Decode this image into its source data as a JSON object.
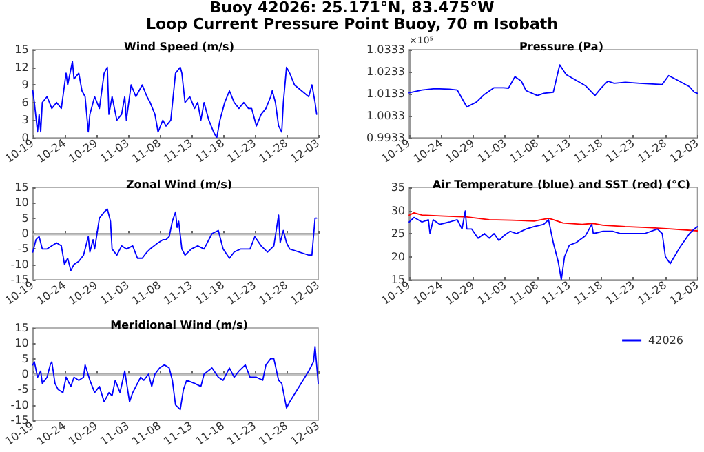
{
  "chart_data": [
    {
      "type": "other",
      "title": "Buoy 42026: 25.171°N, 83.475°W",
      "subtitle": "Loop Current Pressure Point Buoy, 70 m Isobath"
    },
    {
      "type": "line",
      "title": "Wind Speed (m/s)",
      "xlim": [
        "--10-19",
        "--12-03"
      ],
      "xticks": [
        {
          "value": "--10-19",
          "label": "10-19"
        },
        {
          "value": "--10-24",
          "label": "10-24"
        },
        {
          "value": "--10-29",
          "label": "10-29"
        },
        {
          "value": "--11-03",
          "label": "11-03"
        },
        {
          "value": "--11-08",
          "label": "11-08"
        },
        {
          "value": "--11-13",
          "label": "11-13"
        },
        {
          "value": "--11-18",
          "label": "11-18"
        },
        {
          "value": "--11-23",
          "label": "11-23"
        },
        {
          "value": "--11-28",
          "label": "11-28"
        },
        {
          "value": "--12-03",
          "label": "12-03"
        }
      ],
      "ylim": [
        0,
        15
      ],
      "yticks": [
        0,
        3,
        6,
        9,
        12,
        15
      ],
      "grid": false,
      "marker": "none",
      "line_style": "solid",
      "x": [
        "--10-19T00:00",
        "--10-19T06:00",
        "--10-19T18:00",
        "--10-20T00:00",
        "--10-20T06:00",
        "--10-20T12:00",
        "--10-21T06:00",
        "--10-22T00:00",
        "--10-22T18:00",
        "--10-23T12:00",
        "--10-24T06:00",
        "--10-24T12:00",
        "--10-25T06:00",
        "--10-25T12:00",
        "--10-26T06:00",
        "--10-26T18:00",
        "--10-27T06:00",
        "--10-27T18:00",
        "--10-28T00:00",
        "--10-28T18:00",
        "--10-29T12:00",
        "--10-30T06:00",
        "--10-30T18:00",
        "--10-31T00:00",
        "--10-31T12:00",
        "--11-01T06:00",
        "--11-02T00:00",
        "--11-02T12:00",
        "--11-02T18:00",
        "--11-03T12:00",
        "--11-04T06:00",
        "--11-05T06:00",
        "--11-06T00:00",
        "--11-06T12:00",
        "--11-07T06:00",
        "--11-07T18:00",
        "--11-08T12:00",
        "--11-09T00:00",
        "--11-09T18:00",
        "--11-10T12:00",
        "--11-11T06:00",
        "--11-11T12:00",
        "--11-12T00:00",
        "--11-12T18:00",
        "--11-13T12:00",
        "--11-14T00:00",
        "--11-14T12:00",
        "--11-15T00:00",
        "--11-15T18:00",
        "--11-16T12:00",
        "--11-17T00:00",
        "--11-17T12:00",
        "--11-18T06:00",
        "--11-19T00:00",
        "--11-19T18:00",
        "--11-20T12:00",
        "--11-21T06:00",
        "--11-22T00:00",
        "--11-22T12:00",
        "--11-23T06:00",
        "--11-24T00:00",
        "--11-24T18:00",
        "--11-25T12:00",
        "--11-25T18:00",
        "--11-26T06:00",
        "--11-26T18:00",
        "--11-27T06:00",
        "--11-27T12:00",
        "--11-28T00:00",
        "--11-28T12:00",
        "--11-29T06:00",
        "--12-01T12:00",
        "--12-02T00:00",
        "--12-02T12:00",
        "--12-02T18:00"
      ],
      "series": [
        {
          "color": "#0000ff",
          "values": [
            8,
            6,
            1,
            4,
            1,
            6,
            7,
            5,
            6,
            5,
            11,
            9,
            13,
            10,
            11,
            8,
            7,
            1,
            4,
            7,
            5,
            11,
            12,
            4,
            7,
            3,
            4,
            7,
            3,
            9,
            7,
            9,
            7,
            6,
            4,
            1,
            3,
            2,
            3,
            11,
            12,
            11,
            6,
            7,
            5,
            6,
            3,
            6,
            3,
            1,
            0,
            3,
            6,
            8,
            6,
            5,
            6,
            5,
            5,
            2,
            4,
            5,
            7,
            8,
            6,
            2,
            1,
            6,
            12,
            11,
            9,
            7,
            9,
            6,
            4
          ]
        }
      ]
    },
    {
      "type": "line",
      "title": "Pressure (Pa)",
      "annotations": [
        "×10⁵"
      ],
      "xlim": [
        "--10-19",
        "--12-03"
      ],
      "xticks": [
        {
          "value": "--10-19",
          "label": "10-19"
        },
        {
          "value": "--10-24",
          "label": "10-24"
        },
        {
          "value": "--10-29",
          "label": "10-29"
        },
        {
          "value": "--11-03",
          "label": "11-03"
        },
        {
          "value": "--11-08",
          "label": "11-08"
        },
        {
          "value": "--11-13",
          "label": "11-13"
        },
        {
          "value": "--11-18",
          "label": "11-18"
        },
        {
          "value": "--11-23",
          "label": "11-23"
        },
        {
          "value": "--11-28",
          "label": "11-28"
        },
        {
          "value": "--12-03",
          "label": "12-03"
        }
      ],
      "ylim": [
        0.9933,
        1.0333
      ],
      "yticks": [
        0.9933,
        1.0033,
        1.0133,
        1.0233,
        1.0333
      ],
      "grid": false,
      "marker": "none",
      "line_style": "solid",
      "x": [
        "--10-19T00:00",
        "--10-21T00:00",
        "--10-23T00:00",
        "--10-25T06:00",
        "--10-26T12:00",
        "--10-28T00:00",
        "--10-29T12:00",
        "--10-30T18:00",
        "--11-01T06:00",
        "--11-02T18:00",
        "--11-03T12:00",
        "--11-04T12:00",
        "--11-05T12:00",
        "--11-06T06:00",
        "--11-08T00:00",
        "--11-09T00:00",
        "--11-10T12:00",
        "--11-11T12:00",
        "--11-12T12:00",
        "--11-14T00:00",
        "--11-15T12:00",
        "--11-17T00:00",
        "--11-18T00:00",
        "--11-19T00:00",
        "--11-20T00:00",
        "--11-21T18:00",
        "--11-24T00:00",
        "--11-27T12:00",
        "--11-28T12:00",
        "--11-29T12:00",
        "--12-01T18:00",
        "--12-02T12:00",
        "--12-03T00:00"
      ],
      "series": [
        {
          "color": "#0000ff",
          "values": [
            1.0137,
            1.015,
            1.0156,
            1.0154,
            1.015,
            1.0073,
            1.0095,
            1.013,
            1.016,
            1.016,
            1.0158,
            1.021,
            1.019,
            1.0147,
            1.0125,
            1.0135,
            1.014,
            1.0264,
            1.022,
            1.0195,
            1.017,
            1.0125,
            1.016,
            1.019,
            1.018,
            1.0185,
            1.018,
            1.0175,
            1.0215,
            1.02,
            1.0165,
            1.014,
            1.0135
          ]
        }
      ]
    },
    {
      "type": "line",
      "title": "Zonal Wind (m/s)",
      "xlim": [
        "--10-19",
        "--12-03"
      ],
      "xticks": [
        {
          "value": "--10-19",
          "label": "10-19"
        },
        {
          "value": "--10-24",
          "label": "10-24"
        },
        {
          "value": "--10-29",
          "label": "10-29"
        },
        {
          "value": "--11-03",
          "label": "11-03"
        },
        {
          "value": "--11-08",
          "label": "11-08"
        },
        {
          "value": "--11-13",
          "label": "11-13"
        },
        {
          "value": "--11-18",
          "label": "11-18"
        },
        {
          "value": "--11-23",
          "label": "11-23"
        },
        {
          "value": "--11-28",
          "label": "11-28"
        },
        {
          "value": "--12-03",
          "label": "12-03"
        }
      ],
      "ylim": [
        -15,
        15
      ],
      "yticks": [
        -15,
        -10,
        -5,
        0,
        5,
        10,
        15
      ],
      "grid": false,
      "marker": "none",
      "line_style": "solid",
      "ref_lines": [
        {
          "axis": "y",
          "value": 0,
          "color": "#c0c0c0"
        }
      ],
      "x": [
        "--10-19T00:00",
        "--10-19T12:00",
        "--10-20T00:00",
        "--10-20T12:00",
        "--10-21T06:00",
        "--10-22T00:00",
        "--10-22T18:00",
        "--10-23T12:00",
        "--10-24T00:00",
        "--10-24T12:00",
        "--10-25T00:00",
        "--10-25T12:00",
        "--10-26T06:00",
        "--10-27T00:00",
        "--10-27T18:00",
        "--10-28T00:00",
        "--10-28T12:00",
        "--10-28T18:00",
        "--10-29T12:00",
        "--10-30T06:00",
        "--10-30T18:00",
        "--10-31T06:00",
        "--10-31T12:00",
        "--11-01T06:00",
        "--11-02T00:00",
        "--11-02T18:00",
        "--11-03T18:00",
        "--11-04T12:00",
        "--11-05T06:00",
        "--11-06T00:00",
        "--11-06T12:00",
        "--11-07T18:00",
        "--11-08T12:00",
        "--11-09T00:00",
        "--11-09T12:00",
        "--11-10T00:00",
        "--11-10T12:00",
        "--11-10T18:00",
        "--11-11T00:00",
        "--11-11T12:00",
        "--11-12T00:00",
        "--11-13T00:00",
        "--11-14T00:00",
        "--11-15T00:00",
        "--11-16T06:00",
        "--11-17T06:00",
        "--11-18T00:00",
        "--11-19T00:00",
        "--11-19T18:00",
        "--11-20T18:00",
        "--11-22T06:00",
        "--11-23T00:00",
        "--11-24T00:00",
        "--11-25T00:00",
        "--11-26T00:00",
        "--11-26T18:00",
        "--11-27T00:00",
        "--11-27T12:00",
        "--11-28T00:00",
        "--11-28T12:00",
        "--12-01T12:00",
        "--12-02T00:00",
        "--12-02T12:00",
        "--12-02T18:00"
      ],
      "series": [
        {
          "color": "#0000ff",
          "values": [
            -6,
            -2,
            -1,
            -5,
            -5,
            -4,
            -3,
            -4,
            -10,
            -8,
            -12,
            -10,
            -9,
            -7,
            -1,
            -6,
            -2,
            -5,
            5,
            7,
            8,
            4,
            -5,
            -7,
            -4,
            -5,
            -4,
            -8,
            -8,
            -6,
            -5,
            -3,
            -2,
            -2,
            -1,
            4,
            7,
            2,
            4,
            -5,
            -7,
            -5,
            -4,
            -5,
            0,
            1,
            -5,
            -8,
            -6,
            -5,
            -5,
            -1,
            -4,
            -6,
            -4,
            6,
            -3,
            1,
            -3,
            -5,
            -7,
            -7,
            5,
            5
          ]
        }
      ]
    },
    {
      "type": "line",
      "title": "Air Temperature (blue) and SST (red) (°C)",
      "xlim": [
        "--10-19",
        "--12-03"
      ],
      "xticks": [
        {
          "value": "--10-19",
          "label": "10-19"
        },
        {
          "value": "--10-24",
          "label": "10-24"
        },
        {
          "value": "--10-29",
          "label": "10-29"
        },
        {
          "value": "--11-03",
          "label": "11-03"
        },
        {
          "value": "--11-08",
          "label": "11-08"
        },
        {
          "value": "--11-13",
          "label": "11-13"
        },
        {
          "value": "--11-18",
          "label": "11-18"
        },
        {
          "value": "--11-23",
          "label": "11-23"
        },
        {
          "value": "--11-28",
          "label": "11-28"
        },
        {
          "value": "--12-03",
          "label": "12-03"
        }
      ],
      "ylim": [
        15,
        35
      ],
      "yticks": [
        15,
        20,
        25,
        30,
        35
      ],
      "grid": false,
      "marker": "none",
      "line_style": "solid",
      "series": [
        {
          "color": "#ff0000",
          "x": [
            "--10-19T00:00",
            "--10-19T18:00",
            "--10-21T00:00",
            "--10-24T12:00",
            "--10-28T00:00",
            "--10-31T12:00",
            "--11-04T00:00",
            "--11-07T12:00",
            "--11-09T18:00",
            "--11-10T12:00",
            "--11-12T00:00",
            "--11-15T00:00",
            "--11-16T18:00",
            "--11-18T06:00",
            "--11-21T18:00",
            "--11-25T12:00",
            "--11-29T00:00",
            "--12-03T00:00"
          ],
          "values": [
            29,
            29.5,
            29,
            28.8,
            28.6,
            28,
            27.9,
            27.7,
            28.3,
            28,
            27.3,
            27,
            27.2,
            26.8,
            26.5,
            26.3,
            26,
            25.6
          ]
        },
        {
          "color": "#0000ff",
          "x": [
            "--10-19T00:00",
            "--10-19T18:00",
            "--10-21T00:00",
            "--10-22T00:00",
            "--10-22T06:00",
            "--10-22T18:00",
            "--10-23T18:00",
            "--10-25T06:00",
            "--10-26T12:00",
            "--10-27T06:00",
            "--10-27T18:00",
            "--10-28T00:00",
            "--10-28T18:00",
            "--10-29T18:00",
            "--10-30T18:00",
            "--10-31T12:00",
            "--11-01T06:00",
            "--11-02T00:00",
            "--11-02T18:00",
            "--11-03T18:00",
            "--11-04T18:00",
            "--11-06T06:00",
            "--11-07T12:00",
            "--11-09T00:00",
            "--11-09T18:00",
            "--11-10T12:00",
            "--11-11T06:00",
            "--11-11T18:00",
            "--11-12T06:00",
            "--11-13T00:00",
            "--11-14T00:00",
            "--11-15T12:00",
            "--11-16T12:00",
            "--11-16T18:00",
            "--11-18T06:00",
            "--11-19T18:00",
            "--11-21T00:00",
            "--11-22T12:00",
            "--11-24T18:00",
            "--11-26T18:00",
            "--11-27T12:00",
            "--11-28T00:00",
            "--11-28T18:00",
            "--11-30T06:00",
            "--12-01T18:00",
            "--12-02T12:00",
            "--12-03T00:00"
          ],
          "values": [
            27.5,
            28.5,
            27.5,
            28,
            25,
            28,
            27,
            27.5,
            28,
            26,
            29.9,
            26,
            26,
            24,
            25,
            24,
            25,
            23.5,
            24.5,
            25.5,
            25,
            26,
            26.5,
            27,
            28,
            23,
            19,
            15,
            20,
            22.5,
            23,
            24.5,
            27,
            25,
            25.5,
            25.5,
            25,
            25,
            25,
            26,
            25,
            20,
            18.5,
            22,
            25,
            26,
            26.5
          ]
        }
      ]
    },
    {
      "type": "line",
      "title": "Meridional Wind (m/s)",
      "legend": "right",
      "xlim": [
        "--10-19",
        "--12-03"
      ],
      "xticks": [
        {
          "value": "--10-19",
          "label": "10-19"
        },
        {
          "value": "--10-24",
          "label": "10-24"
        },
        {
          "value": "--10-29",
          "label": "10-29"
        },
        {
          "value": "--11-03",
          "label": "11-03"
        },
        {
          "value": "--11-08",
          "label": "11-08"
        },
        {
          "value": "--11-13",
          "label": "11-13"
        },
        {
          "value": "--11-18",
          "label": "11-18"
        },
        {
          "value": "--11-23",
          "label": "11-23"
        },
        {
          "value": "--11-28",
          "label": "11-28"
        },
        {
          "value": "--12-03",
          "label": "12-03"
        }
      ],
      "ylim": [
        -15,
        15
      ],
      "yticks": [
        -15,
        -10,
        -5,
        0,
        5,
        10,
        15
      ],
      "grid": false,
      "marker": "none",
      "line_style": "solid",
      "ref_lines": [
        {
          "axis": "y",
          "value": 0,
          "color": "#c0c0c0"
        }
      ],
      "x": [
        "--10-19T00:00",
        "--10-19T06:00",
        "--10-19T18:00",
        "--10-20T06:00",
        "--10-20T12:00",
        "--10-21T06:00",
        "--10-21T18:00",
        "--10-22T00:00",
        "--10-22T12:00",
        "--10-23T00:00",
        "--10-23T18:00",
        "--10-24T06:00",
        "--10-25T00:00",
        "--10-25T12:00",
        "--10-26T06:00",
        "--10-27T00:00",
        "--10-27T06:00",
        "--10-28T00:00",
        "--10-28T18:00",
        "--10-29T12:00",
        "--10-30T06:00",
        "--10-31T00:00",
        "--10-31T12:00",
        "--11-01T00:00",
        "--11-01T18:00",
        "--11-02T12:00",
        "--11-03T06:00",
        "--11-03T18:00",
        "--11-05T00:00",
        "--11-05T12:00",
        "--11-06T06:00",
        "--11-06T18:00",
        "--11-07T06:00",
        "--11-08T00:00",
        "--11-08T18:00",
        "--11-09T12:00",
        "--11-10T00:00",
        "--11-10T12:00",
        "--11-11T06:00",
        "--11-11T18:00",
        "--11-12T06:00",
        "--11-13T12:00",
        "--11-14T12:00",
        "--11-15T00:00",
        "--11-16T06:00",
        "--11-17T06:00",
        "--11-18T00:00",
        "--11-19T00:00",
        "--11-19T18:00",
        "--11-20T12:00",
        "--11-21T12:00",
        "--11-22T06:00",
        "--11-23T06:00",
        "--11-24T06:00",
        "--11-24T18:00",
        "--11-25T12:00",
        "--11-26T00:00",
        "--11-26T18:00",
        "--11-27T06:00",
        "--11-28T00:00",
        "--11-28T12:00",
        "--12-01T12:00",
        "--12-02T06:00",
        "--12-02T12:00",
        "--12-03T00:00"
      ],
      "series": [
        {
          "name": "42026",
          "color": "#0000ff",
          "values": [
            3,
            4,
            -1,
            1,
            -3,
            -1,
            3,
            4,
            -3,
            -5,
            -6,
            -1,
            -4,
            -1,
            -2,
            -1,
            3,
            -2,
            -6,
            -4,
            -9,
            -6,
            -7,
            -2,
            -6,
            1,
            -9,
            -6,
            -1,
            -2,
            0,
            -4,
            0,
            2,
            3,
            2,
            -2,
            -10,
            -11.5,
            -5,
            -2,
            -3,
            -4,
            0,
            2,
            -1,
            -2,
            2,
            -1,
            1,
            3,
            -1,
            -1,
            -2,
            3,
            5,
            5,
            -2,
            -3,
            -11,
            -9,
            1,
            4,
            9,
            -3
          ]
        }
      ]
    }
  ]
}
